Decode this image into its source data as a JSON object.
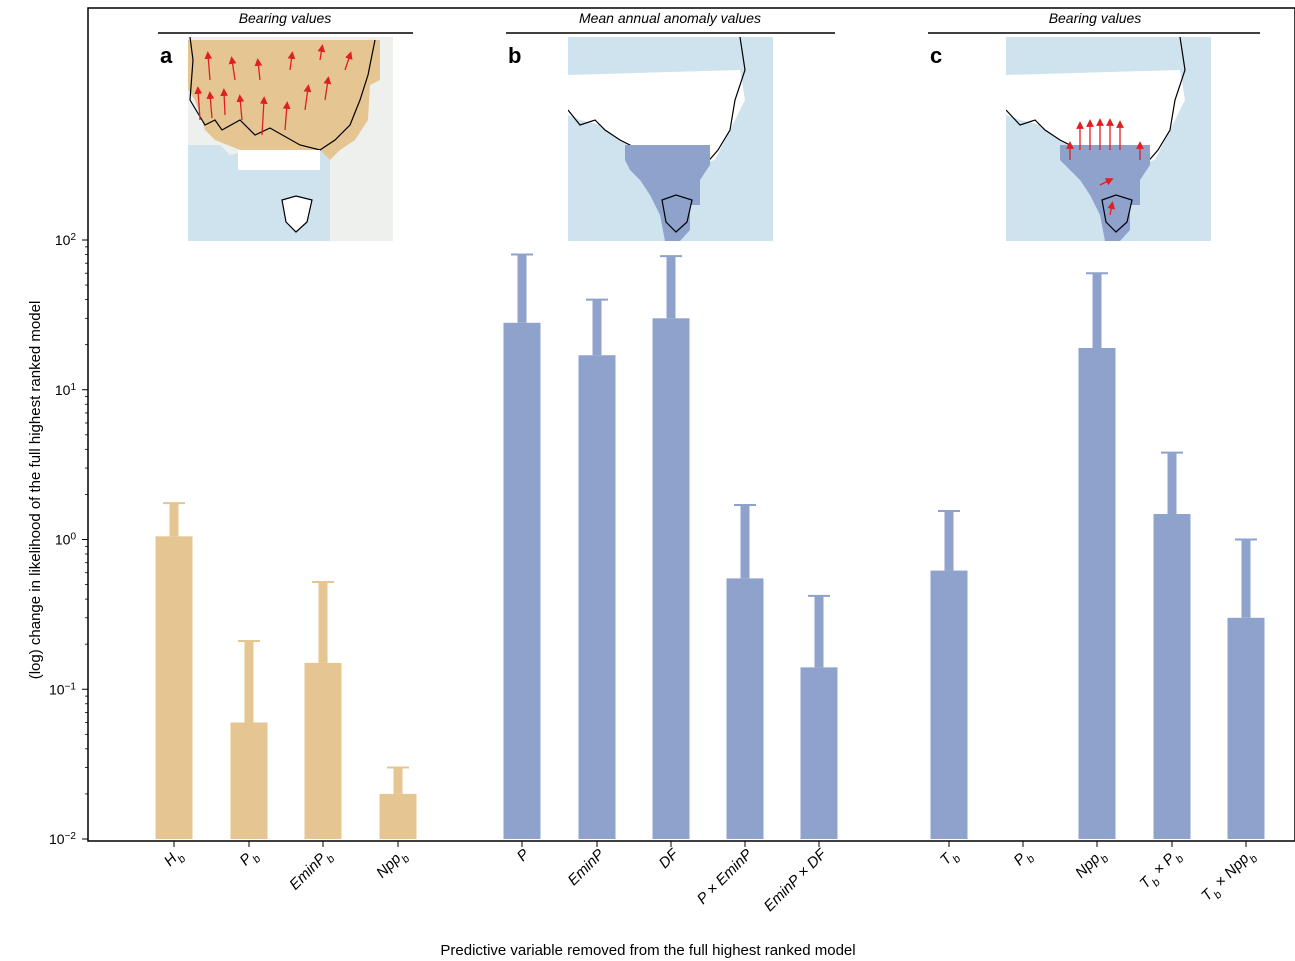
{
  "chart_data": {
    "type": "bar",
    "scale": "log",
    "ylim": [
      0.01,
      100
    ],
    "y_ticks": [
      0.01,
      0.1,
      1,
      10,
      100
    ],
    "y_tick_labels": [
      "10^-2",
      "10^-1",
      "10^0",
      "10^1",
      "10^2"
    ],
    "ylabel": "(log) change in likelihood of the full highest ranked model",
    "xlabel": "Predictive variable removed from the full highest ranked model",
    "colors": {
      "bearing_a": "#E5C592",
      "anomaly": "#8EA2CC",
      "error_bar": "same as bar"
    },
    "panels": [
      {
        "letter": "a",
        "title": "Bearing values",
        "color": "#E5C592",
        "categories": [
          "H_b",
          "P_b",
          "EminP_b",
          "Npp_b"
        ],
        "values": [
          1.05,
          0.06,
          0.15,
          0.02
        ],
        "upper": [
          1.75,
          0.21,
          0.52,
          0.03
        ]
      },
      {
        "letter": "b",
        "title": "Mean annual anomaly values",
        "color": "#8EA2CC",
        "categories": [
          "P",
          "EminP",
          "DF",
          "P × EminP",
          "EminP × DF"
        ],
        "values": [
          28,
          17,
          30,
          0.55,
          0.14
        ],
        "upper": [
          80,
          40,
          78,
          1.7,
          0.42
        ]
      },
      {
        "letter": "c",
        "title": "Bearing values",
        "color": "#8EA2CC",
        "categories": [
          "T_b",
          "P_b",
          "Npp_b",
          "T_b × P_b",
          "T_b × Npp_b"
        ],
        "values": [
          0.62,
          null,
          19,
          1.48,
          0.3
        ],
        "upper": [
          1.55,
          null,
          60,
          3.8,
          1.0
        ]
      }
    ]
  }
}
